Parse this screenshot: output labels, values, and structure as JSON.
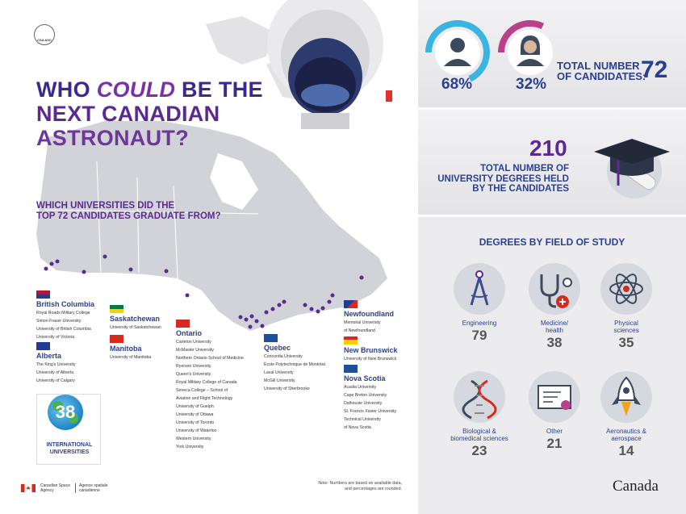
{
  "logo": {
    "text": "CSA ASC"
  },
  "headline": {
    "part1": "WHO ",
    "emph": "COULD",
    "part2": " BE THE",
    "line2": "NEXT CANADIAN",
    "line3": "ASTRONAUT?"
  },
  "subquestion": {
    "line1": "WHICH UNIVERSITIES DID THE",
    "line2": "TOP 72 CANDIDATES GRADUATE FROM?"
  },
  "provinces": {
    "bc": {
      "name": "British Columbia",
      "schools": [
        "Royal Roads Military College",
        "Simon Fraser University",
        "University of British Columbia",
        "University of Victoria"
      ]
    },
    "ab": {
      "name": "Alberta",
      "schools": [
        "The King's University",
        "University of Alberta",
        "University of Calgary"
      ]
    },
    "sk": {
      "name": "Saskatchewan",
      "schools": [
        "University of Saskatchewan"
      ]
    },
    "mb": {
      "name": "Manitoba",
      "schools": [
        "University of Manitoba"
      ]
    },
    "on": {
      "name": "Ontario",
      "schools": [
        "Carleton University",
        "McMaster University",
        "Northern Ontario School of Medicine",
        "Ryerson University",
        "Queen's University",
        "Royal Military College of Canada",
        "Seneca College – School of",
        "Aviation and Flight Technology",
        "University of Guelph",
        "University of Ottawa",
        "University of Toronto",
        "University of Waterloo",
        "Western University",
        "York University"
      ]
    },
    "qc": {
      "name": "Quebec",
      "schools": [
        "Concordia University",
        "École Polytechnique de Montréal",
        "Laval University",
        "McGill University",
        "University of Sherbrooke"
      ]
    },
    "nl": {
      "name": "Newfoundland",
      "schools": [
        "Memorial University",
        "of Newfoundland"
      ]
    },
    "nb": {
      "name": "New Brunswick",
      "schools": [
        "University of New Brunswick"
      ]
    },
    "ns": {
      "name": "Nova Scotia",
      "schools": [
        "Acadia University",
        "Cape Breton University",
        "Dalhousie University",
        "St. Francis Xavier University",
        "Technical University",
        "of Nova Scotia"
      ]
    }
  },
  "international": {
    "count": "38",
    "line1": "INTERNATIONAL",
    "line2": "UNIVERSITIES"
  },
  "agency": {
    "line1": "Canadian Space",
    "line2": "Agency",
    "line3": "Agence spatiale",
    "line4": "canadienne"
  },
  "note": {
    "line1": "Note: Numbers are based on available data,",
    "line2": "and percentages are rounded."
  },
  "candidates": {
    "male_pct": "68%",
    "female_pct": "32%",
    "male_fraction": 0.68,
    "female_fraction": 0.32,
    "label1": "TOTAL NUMBER",
    "label2": "OF CANDIDATES:",
    "total": "72"
  },
  "degrees": {
    "total": "210",
    "line1": "TOTAL NUMBER OF",
    "line2": "UNIVERSITY DEGREES HELD",
    "line3": "BY THE CANDIDATES"
  },
  "fields": {
    "title": "DEGREES BY FIELD OF STUDY",
    "items": [
      {
        "label1": "Engineering",
        "label2": "",
        "value": "79",
        "icon": "compass-icon"
      },
      {
        "label1": "Medicine/",
        "label2": "health",
        "value": "38",
        "icon": "stethoscope-icon"
      },
      {
        "label1": "Physical",
        "label2": "sciences",
        "value": "35",
        "icon": "atom-icon"
      },
      {
        "label1": "Biological &",
        "label2": "biomedical sciences",
        "value": "23",
        "icon": "dna-icon"
      },
      {
        "label1": "Other",
        "label2": "",
        "value": "21",
        "icon": "certificate-icon"
      },
      {
        "label1": "Aeronautics &",
        "label2": "aerospace",
        "value": "14",
        "icon": "rocket-icon"
      }
    ]
  },
  "wordmark": "Canada",
  "colors": {
    "male": "#3ab4e0",
    "female": "#b8418a",
    "navy": "#2a3f8f",
    "purple": "#5a2a90",
    "dots": "#5a2a90"
  }
}
